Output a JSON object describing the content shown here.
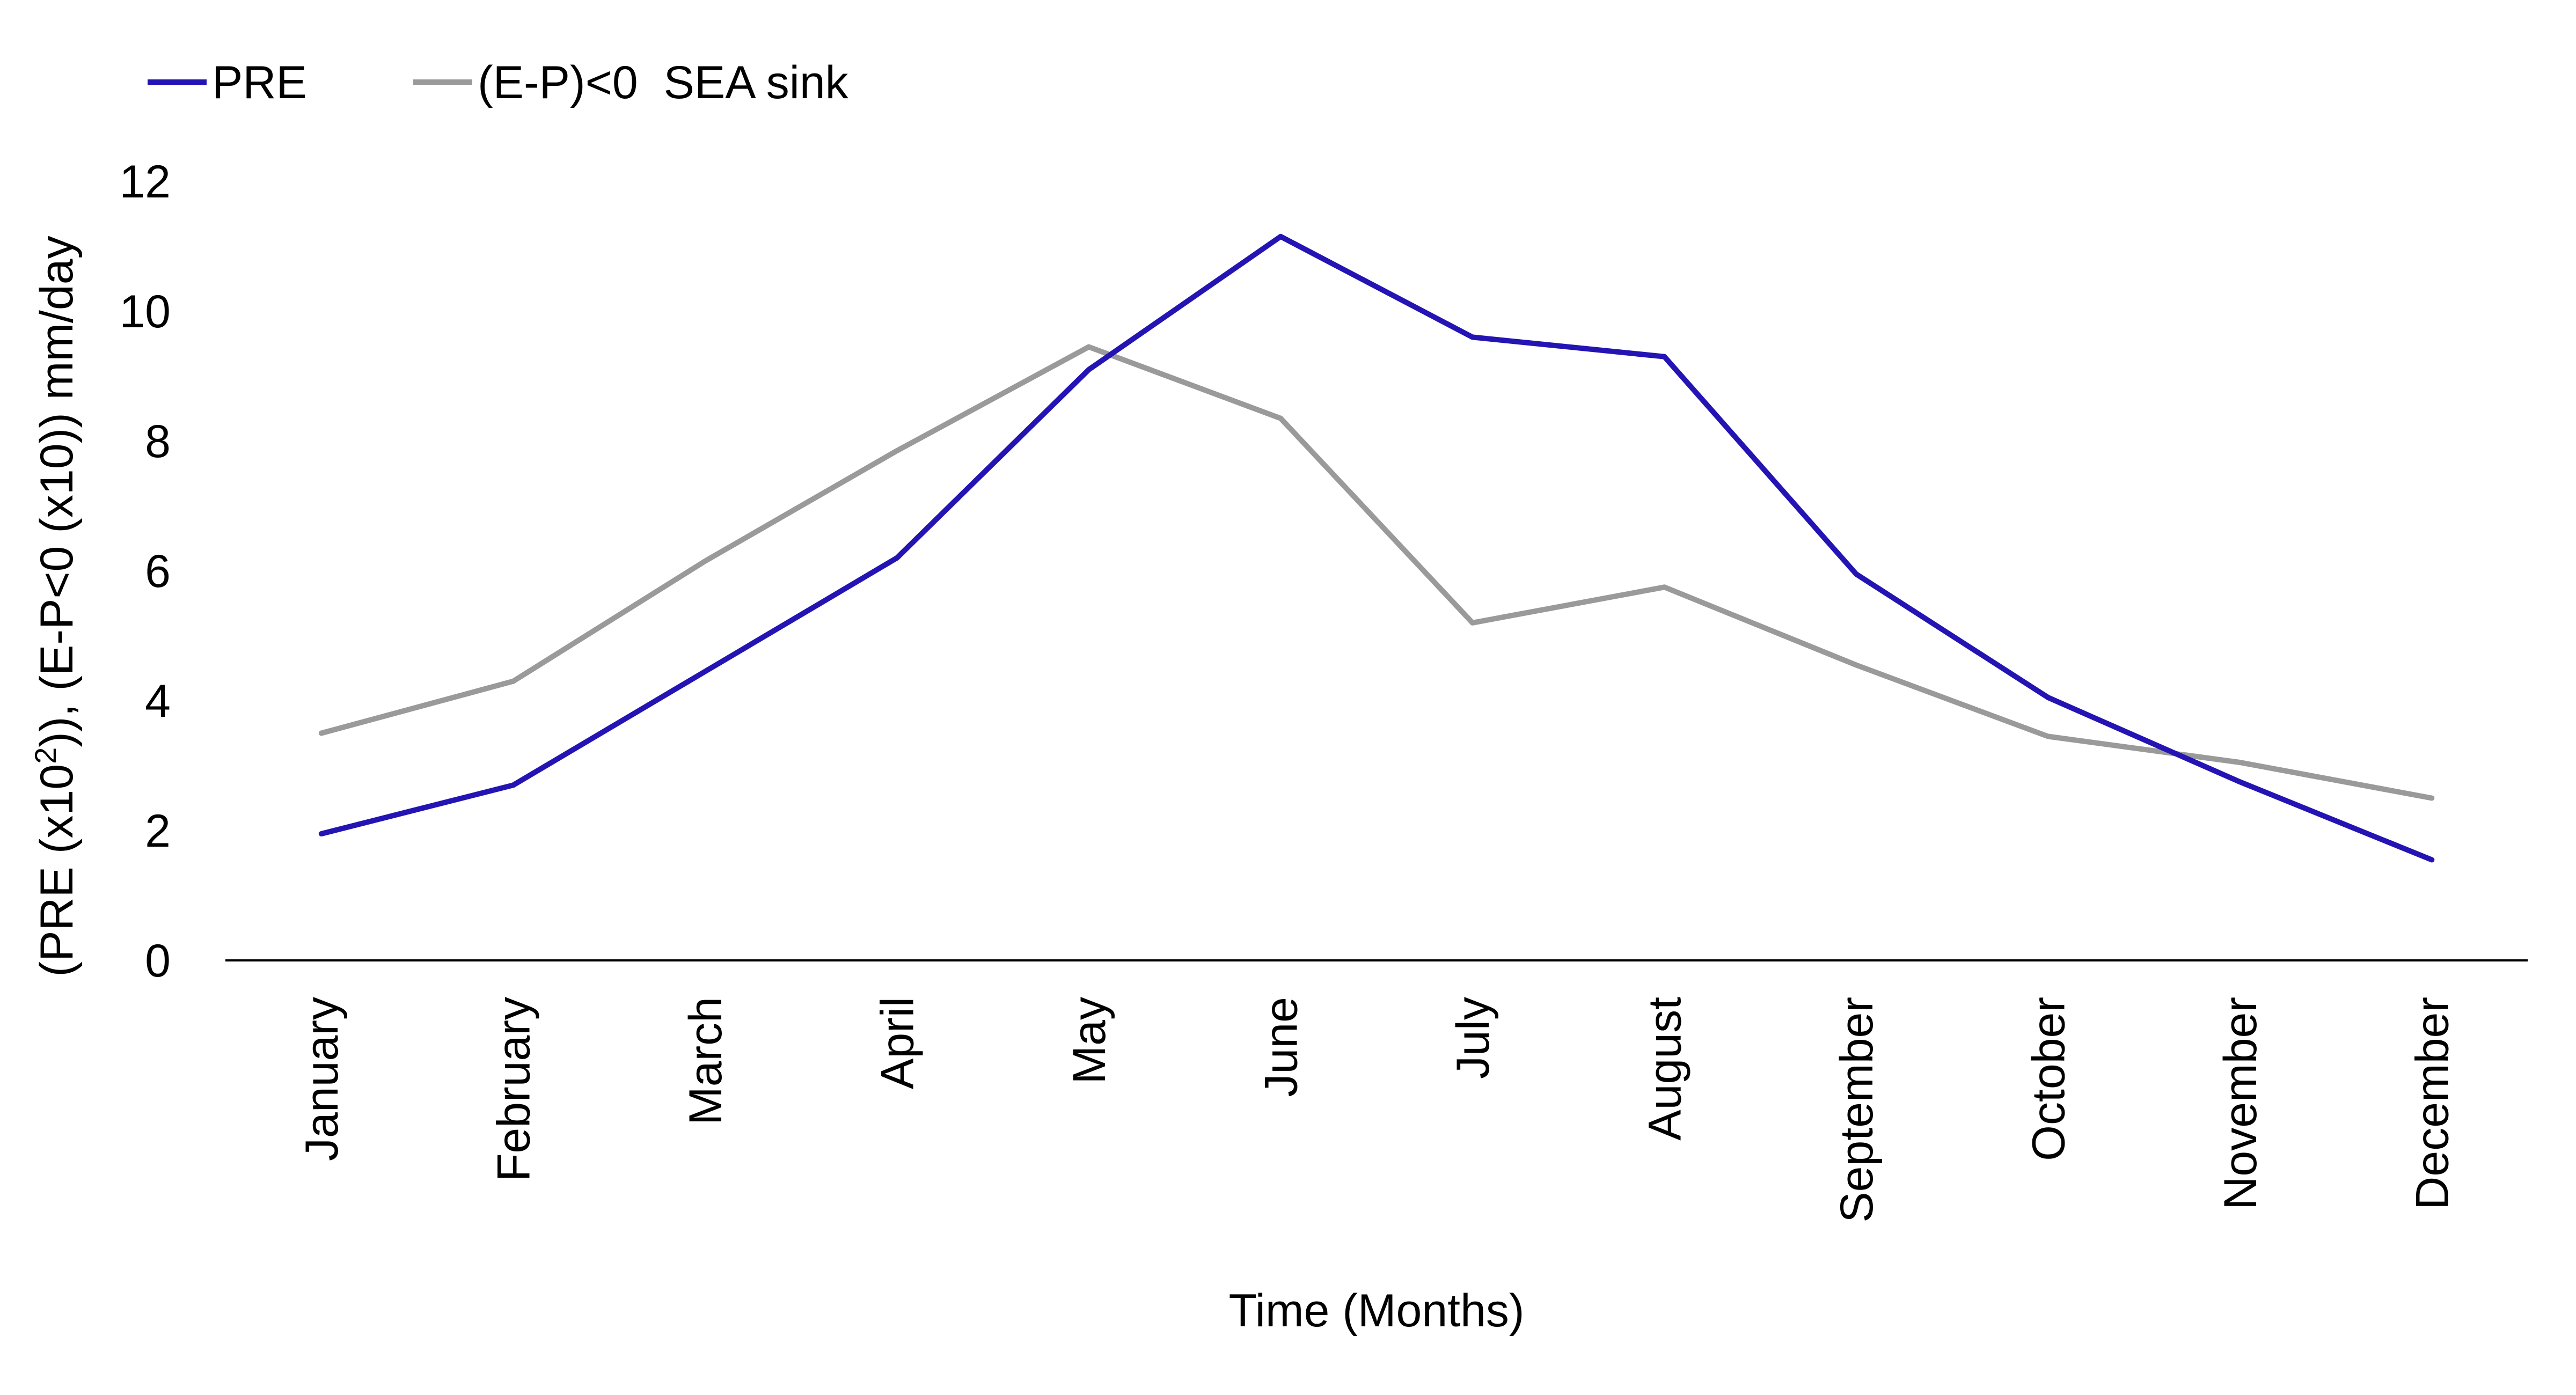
{
  "chart_data": {
    "type": "line",
    "title": "",
    "categories": [
      "January",
      "February",
      "March",
      "April",
      "May",
      "June",
      "July",
      "August",
      "September",
      "October",
      "November",
      "December"
    ],
    "series": [
      {
        "name": "PRE",
        "color": "#2414b4",
        "values": [
          1.95,
          2.7,
          4.45,
          6.2,
          9.1,
          11.15,
          9.6,
          9.3,
          5.95,
          4.05,
          2.75,
          1.55
        ]
      },
      {
        "name": "(E-P)<0  SEA sink",
        "color": "#9a9a9a",
        "values": [
          3.5,
          4.3,
          6.15,
          7.85,
          9.45,
          8.35,
          5.2,
          5.75,
          4.55,
          3.45,
          3.05,
          2.5
        ]
      }
    ],
    "xlabel": "Time (Months)",
    "ylabel": {
      "pre": "(PRE (x10",
      "sup": "2",
      "post": ")), (E-P<0 (x10)) mm/day"
    },
    "ylim": [
      0,
      12
    ],
    "yticks": [
      0,
      2,
      4,
      6,
      8,
      10,
      12
    ],
    "grid": false,
    "legend_position": "top-left"
  }
}
